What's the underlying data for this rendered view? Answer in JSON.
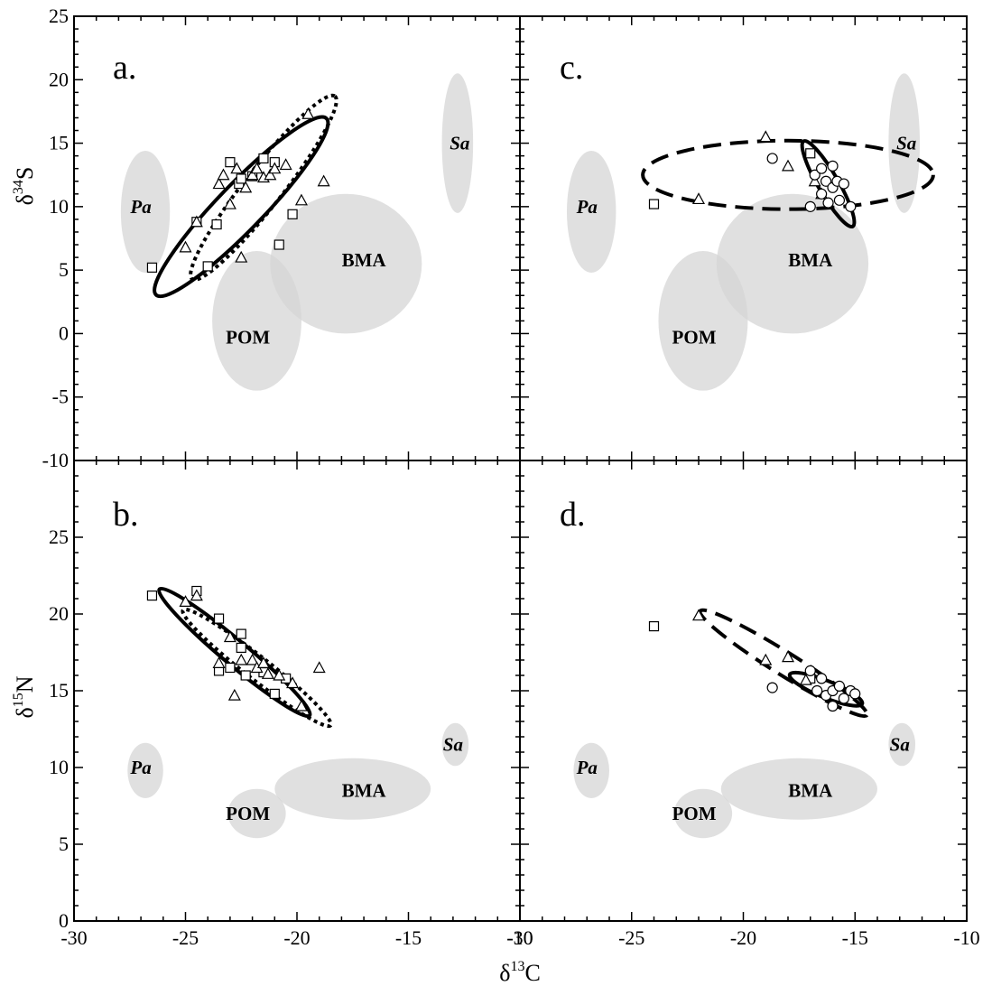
{
  "figure": {
    "x_axis_title": {
      "main": "δ",
      "sup": "13",
      "rest": "C"
    },
    "y_axis_title_top": {
      "main": "δ",
      "sup": "34",
      "rest": "S"
    },
    "y_axis_title_bottom": {
      "main": "δ",
      "sup": "15",
      "rest": "N"
    }
  },
  "chart_data": [
    {
      "panel": "a.",
      "type": "scatter",
      "xlim": [
        -30,
        -10
      ],
      "ylim": [
        -10,
        25
      ],
      "x_ticks": [
        "-30",
        "-25",
        "-20",
        "-15",
        "-10"
      ],
      "y_ticks": [
        "-10",
        "-5",
        "0",
        "5",
        "10",
        "15",
        "20",
        "25"
      ],
      "show_x_tick_labels": false,
      "show_y_tick_labels": true,
      "sources": [
        {
          "label": "Pa",
          "italic": true,
          "x": -27,
          "y": 10,
          "cx": -26.8,
          "cy": 9.6,
          "rx": 1.1,
          "ry": 4.8
        },
        {
          "label": "Sa",
          "italic": true,
          "x": -12.7,
          "y": 15,
          "cx": -12.8,
          "cy": 15,
          "rx": 0.7,
          "ry": 5.5
        },
        {
          "label": "BMA",
          "italic": false,
          "x": -17,
          "y": 5.8,
          "cx": -17.8,
          "cy": 5.5,
          "rx": 3.4,
          "ry": 5.5
        },
        {
          "label": "POM",
          "italic": false,
          "x": -22.2,
          "y": -0.3,
          "cx": -21.8,
          "cy": 1,
          "rx": 2,
          "ry": 5.5
        }
      ],
      "series": [
        {
          "marker": "square",
          "points": [
            [
              -26.5,
              5.2
            ],
            [
              -24.5,
              8.8
            ],
            [
              -24,
              5.3
            ],
            [
              -23.6,
              8.6
            ],
            [
              -23,
              13.5
            ],
            [
              -22.6,
              11.8
            ],
            [
              -22.5,
              12.2
            ],
            [
              -22,
              12.4
            ],
            [
              -21.5,
              13.8
            ],
            [
              -21,
              13.5
            ],
            [
              -20.8,
              7
            ],
            [
              -20.2,
              9.4
            ]
          ]
        },
        {
          "marker": "triangle",
          "points": [
            [
              -25,
              6.8
            ],
            [
              -24.5,
              8.8
            ],
            [
              -23.5,
              11.8
            ],
            [
              -23.3,
              12.5
            ],
            [
              -23,
              10.2
            ],
            [
              -22.7,
              13
            ],
            [
              -22.5,
              6
            ],
            [
              -22.3,
              11.5
            ],
            [
              -22,
              12.5
            ],
            [
              -21.8,
              13
            ],
            [
              -21.5,
              12.3
            ],
            [
              -21.2,
              12.5
            ],
            [
              -21,
              13
            ],
            [
              -20.5,
              13.3
            ],
            [
              -19.8,
              10.5
            ],
            [
              -19.5,
              17.3
            ],
            [
              -18.8,
              12
            ]
          ]
        },
        {
          "marker": "circle",
          "points": []
        }
      ],
      "ellipses": [
        {
          "style": "solid",
          "cx": -22.5,
          "cy": 10,
          "rx": 5.5,
          "ry": 1.8,
          "angle": 46
        },
        {
          "style": "dotted",
          "cx": -21.5,
          "cy": 11.5,
          "rx": 5.2,
          "ry": 1.5,
          "angle": 52
        }
      ]
    },
    {
      "panel": "b.",
      "type": "scatter",
      "xlim": [
        -30,
        -10
      ],
      "ylim": [
        0,
        30
      ],
      "x_ticks": [
        "-30",
        "-25",
        "-20",
        "-15",
        "-10"
      ],
      "y_ticks": [
        "0",
        "5",
        "10",
        "15",
        "20",
        "25"
      ],
      "show_x_tick_labels": true,
      "show_y_tick_labels": true,
      "sources": [
        {
          "label": "Pa",
          "italic": true,
          "x": -27,
          "y": 10,
          "cx": -26.8,
          "cy": 9.8,
          "rx": 0.8,
          "ry": 1.8
        },
        {
          "label": "Sa",
          "italic": true,
          "x": -13,
          "y": 11.5,
          "cx": -12.9,
          "cy": 11.5,
          "rx": 0.6,
          "ry": 1.4
        },
        {
          "label": "BMA",
          "italic": false,
          "x": -17,
          "y": 8.5,
          "cx": -17.5,
          "cy": 8.6,
          "rx": 3.5,
          "ry": 2
        },
        {
          "label": "POM",
          "italic": false,
          "x": -22.2,
          "y": 7,
          "cx": -21.8,
          "cy": 7,
          "rx": 1.3,
          "ry": 1.6
        }
      ],
      "series": [
        {
          "marker": "square",
          "points": [
            [
              -26.5,
              21.2
            ],
            [
              -24.5,
              21.5
            ],
            [
              -23.5,
              19.7
            ],
            [
              -23.5,
              16.3
            ],
            [
              -23,
              16.5
            ],
            [
              -22.5,
              17.8
            ],
            [
              -22.3,
              16
            ],
            [
              -22.5,
              18.7
            ],
            [
              -21.5,
              16.2
            ],
            [
              -21,
              14.8
            ],
            [
              -20.5,
              15.8
            ]
          ]
        },
        {
          "marker": "triangle",
          "points": [
            [
              -25,
              20.8
            ],
            [
              -24.5,
              21.2
            ],
            [
              -23.5,
              16.8
            ],
            [
              -23,
              18.5
            ],
            [
              -22.8,
              14.7
            ],
            [
              -22.5,
              17
            ],
            [
              -22,
              17
            ],
            [
              -21.8,
              16.5
            ],
            [
              -21.5,
              16.8
            ],
            [
              -21.3,
              16.1
            ],
            [
              -20.8,
              16
            ],
            [
              -20.2,
              15.5
            ],
            [
              -19.8,
              14
            ],
            [
              -19,
              16.5
            ]
          ]
        },
        {
          "marker": "circle",
          "points": []
        }
      ],
      "ellipses": [
        {
          "style": "solid",
          "cx": -22.8,
          "cy": 17.5,
          "rx": 4.4,
          "ry": 0.8,
          "angle": -40
        },
        {
          "style": "dotted",
          "cx": -21.8,
          "cy": 16.5,
          "rx": 4.2,
          "ry": 0.75,
          "angle": -38
        }
      ]
    },
    {
      "panel": "c.",
      "type": "scatter",
      "xlim": [
        -30,
        -10
      ],
      "ylim": [
        -10,
        25
      ],
      "x_ticks": [
        "-30",
        "-25",
        "-20",
        "-15",
        "-10"
      ],
      "y_ticks": [
        "-10",
        "-5",
        "0",
        "5",
        "10",
        "15",
        "20",
        "25"
      ],
      "show_x_tick_labels": false,
      "show_y_tick_labels": false,
      "sources": [
        {
          "label": "Pa",
          "italic": true,
          "x": -27,
          "y": 10,
          "cx": -26.8,
          "cy": 9.6,
          "rx": 1.1,
          "ry": 4.8
        },
        {
          "label": "Sa",
          "italic": true,
          "x": -12.7,
          "y": 15,
          "cx": -12.8,
          "cy": 15,
          "rx": 0.7,
          "ry": 5.5
        },
        {
          "label": "BMA",
          "italic": false,
          "x": -17,
          "y": 5.8,
          "cx": -17.8,
          "cy": 5.5,
          "rx": 3.4,
          "ry": 5.5
        },
        {
          "label": "POM",
          "italic": false,
          "x": -22.2,
          "y": -0.3,
          "cx": -21.8,
          "cy": 1,
          "rx": 2,
          "ry": 5.5
        }
      ],
      "series": [
        {
          "marker": "square",
          "points": [
            [
              -24,
              10.2
            ],
            [
              -17,
              14.2
            ]
          ]
        },
        {
          "marker": "triangle",
          "points": [
            [
              -22,
              10.6
            ],
            [
              -19,
              15.5
            ],
            [
              -18,
              13.2
            ],
            [
              -16.8,
              12
            ],
            [
              -16.5,
              11
            ]
          ]
        },
        {
          "marker": "circle",
          "points": [
            [
              -18.7,
              13.8
            ],
            [
              -17,
              10
            ],
            [
              -16.8,
              12.5
            ],
            [
              -16.5,
              13
            ],
            [
              -16.5,
              11
            ],
            [
              -16.3,
              12
            ],
            [
              -16.2,
              10.3
            ],
            [
              -16,
              13.2
            ],
            [
              -16,
              11.5
            ],
            [
              -15.8,
              12
            ],
            [
              -15.7,
              10.5
            ],
            [
              -15.5,
              11.8
            ],
            [
              -15.2,
              10
            ]
          ]
        }
      ],
      "ellipses": [
        {
          "style": "dashed",
          "cx": -18,
          "cy": 12.5,
          "rx": 6.5,
          "ry": 2.7,
          "angle": 0
        },
        {
          "style": "solid",
          "cx": -16.2,
          "cy": 11.8,
          "rx": 2.2,
          "ry": 0.8,
          "angle": -60
        }
      ]
    },
    {
      "panel": "d.",
      "type": "scatter",
      "xlim": [
        -30,
        -10
      ],
      "ylim": [
        0,
        30
      ],
      "x_ticks": [
        "-30",
        "-25",
        "-20",
        "-15",
        "-10"
      ],
      "y_ticks": [
        "0",
        "5",
        "10",
        "15",
        "20",
        "25"
      ],
      "show_x_tick_labels": true,
      "show_y_tick_labels": false,
      "sources": [
        {
          "label": "Pa",
          "italic": true,
          "x": -27,
          "y": 10,
          "cx": -26.8,
          "cy": 9.8,
          "rx": 0.8,
          "ry": 1.8
        },
        {
          "label": "Sa",
          "italic": true,
          "x": -13,
          "y": 11.5,
          "cx": -12.9,
          "cy": 11.5,
          "rx": 0.6,
          "ry": 1.4
        },
        {
          "label": "BMA",
          "italic": false,
          "x": -17,
          "y": 8.5,
          "cx": -17.5,
          "cy": 8.6,
          "rx": 3.5,
          "ry": 2
        },
        {
          "label": "POM",
          "italic": false,
          "x": -22.2,
          "y": 7,
          "cx": -21.8,
          "cy": 7,
          "rx": 1.3,
          "ry": 1.6
        }
      ],
      "series": [
        {
          "marker": "square",
          "points": [
            [
              -24,
              19.2
            ],
            [
              -17,
              15.8
            ]
          ]
        },
        {
          "marker": "triangle",
          "points": [
            [
              -22,
              19.9
            ],
            [
              -19,
              17
            ],
            [
              -18,
              17.2
            ],
            [
              -17.2,
              15.7
            ]
          ]
        },
        {
          "marker": "circle",
          "points": [
            [
              -18.7,
              15.2
            ],
            [
              -17,
              16.3
            ],
            [
              -16.7,
              15
            ],
            [
              -16.5,
              15.8
            ],
            [
              -16.3,
              14.7
            ],
            [
              -16,
              15
            ],
            [
              -16,
              14
            ],
            [
              -15.7,
              15.3
            ],
            [
              -15.5,
              14.5
            ],
            [
              -15.2,
              15
            ],
            [
              -15,
              14.8
            ]
          ]
        }
      ],
      "ellipses": [
        {
          "style": "dashed",
          "cx": -18.2,
          "cy": 16.8,
          "rx": 4.4,
          "ry": 0.75,
          "angle": -32
        },
        {
          "style": "solid",
          "cx": -16.3,
          "cy": 15.1,
          "rx": 1.75,
          "ry": 0.55,
          "angle": -22
        }
      ]
    }
  ]
}
